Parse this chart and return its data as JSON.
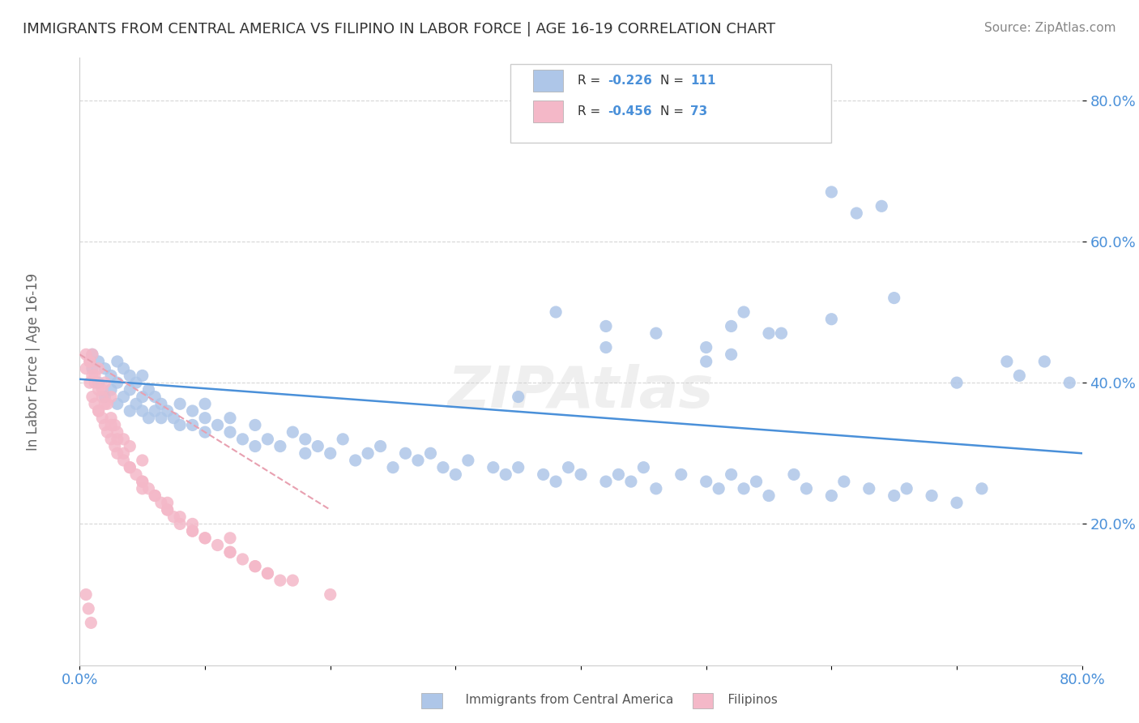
{
  "title": "IMMIGRANTS FROM CENTRAL AMERICA VS FILIPINO IN LABOR FORCE | AGE 16-19 CORRELATION CHART",
  "source": "Source: ZipAtlas.com",
  "ylabel": "In Labor Force | Age 16-19",
  "x_min": 0.0,
  "x_max": 0.8,
  "y_min": 0.0,
  "y_max": 0.86,
  "yticks": [
    0.2,
    0.4,
    0.6,
    0.8
  ],
  "ytick_labels": [
    "20.0%",
    "40.0%",
    "60.0%",
    "80.0%"
  ],
  "xticks": [
    0.0,
    0.1,
    0.2,
    0.3,
    0.4,
    0.5,
    0.6,
    0.7,
    0.8
  ],
  "legend_r_values": [
    "-0.226",
    "-0.456"
  ],
  "legend_n_values": [
    "111",
    "73"
  ],
  "blue_scatter_x": [
    0.01,
    0.01,
    0.015,
    0.015,
    0.02,
    0.02,
    0.025,
    0.025,
    0.03,
    0.03,
    0.03,
    0.035,
    0.035,
    0.04,
    0.04,
    0.04,
    0.045,
    0.045,
    0.05,
    0.05,
    0.05,
    0.055,
    0.055,
    0.06,
    0.06,
    0.065,
    0.065,
    0.07,
    0.075,
    0.08,
    0.08,
    0.09,
    0.09,
    0.1,
    0.1,
    0.1,
    0.11,
    0.12,
    0.12,
    0.13,
    0.14,
    0.14,
    0.15,
    0.16,
    0.17,
    0.18,
    0.18,
    0.19,
    0.2,
    0.21,
    0.22,
    0.23,
    0.24,
    0.25,
    0.26,
    0.27,
    0.28,
    0.29,
    0.3,
    0.31,
    0.33,
    0.34,
    0.35,
    0.37,
    0.38,
    0.39,
    0.4,
    0.42,
    0.43,
    0.44,
    0.45,
    0.46,
    0.48,
    0.5,
    0.51,
    0.52,
    0.53,
    0.54,
    0.55,
    0.57,
    0.58,
    0.6,
    0.61,
    0.63,
    0.65,
    0.66,
    0.68,
    0.7,
    0.72,
    0.74,
    0.75,
    0.77,
    0.79,
    0.38,
    0.42,
    0.53,
    0.55,
    0.6,
    0.46,
    0.5,
    0.52,
    0.56,
    0.42,
    0.6,
    0.62,
    0.64,
    0.5,
    0.52,
    0.65,
    0.7,
    0.35
  ],
  "blue_scatter_y": [
    0.42,
    0.44,
    0.4,
    0.43,
    0.38,
    0.42,
    0.39,
    0.41,
    0.37,
    0.4,
    0.43,
    0.38,
    0.42,
    0.36,
    0.39,
    0.41,
    0.37,
    0.4,
    0.36,
    0.38,
    0.41,
    0.35,
    0.39,
    0.36,
    0.38,
    0.35,
    0.37,
    0.36,
    0.35,
    0.34,
    0.37,
    0.34,
    0.36,
    0.33,
    0.35,
    0.37,
    0.34,
    0.33,
    0.35,
    0.32,
    0.31,
    0.34,
    0.32,
    0.31,
    0.33,
    0.3,
    0.32,
    0.31,
    0.3,
    0.32,
    0.29,
    0.3,
    0.31,
    0.28,
    0.3,
    0.29,
    0.3,
    0.28,
    0.27,
    0.29,
    0.28,
    0.27,
    0.28,
    0.27,
    0.26,
    0.28,
    0.27,
    0.26,
    0.27,
    0.26,
    0.28,
    0.25,
    0.27,
    0.26,
    0.25,
    0.27,
    0.25,
    0.26,
    0.24,
    0.27,
    0.25,
    0.24,
    0.26,
    0.25,
    0.24,
    0.25,
    0.24,
    0.23,
    0.25,
    0.43,
    0.41,
    0.43,
    0.4,
    0.5,
    0.48,
    0.5,
    0.47,
    0.49,
    0.47,
    0.45,
    0.48,
    0.47,
    0.45,
    0.67,
    0.64,
    0.65,
    0.43,
    0.44,
    0.52,
    0.4,
    0.38
  ],
  "pink_scatter_x": [
    0.005,
    0.005,
    0.008,
    0.008,
    0.01,
    0.01,
    0.01,
    0.012,
    0.012,
    0.015,
    0.015,
    0.015,
    0.018,
    0.018,
    0.02,
    0.02,
    0.02,
    0.022,
    0.025,
    0.025,
    0.025,
    0.028,
    0.028,
    0.03,
    0.03,
    0.035,
    0.035,
    0.04,
    0.04,
    0.045,
    0.05,
    0.05,
    0.055,
    0.06,
    0.065,
    0.07,
    0.075,
    0.08,
    0.09,
    0.1,
    0.11,
    0.12,
    0.13,
    0.14,
    0.15,
    0.16,
    0.005,
    0.007,
    0.009,
    0.008,
    0.012,
    0.018,
    0.022,
    0.015,
    0.025,
    0.03,
    0.035,
    0.04,
    0.05,
    0.06,
    0.07,
    0.08,
    0.09,
    0.1,
    0.12,
    0.14,
    0.05,
    0.07,
    0.09,
    0.12,
    0.15,
    0.17,
    0.2
  ],
  "pink_scatter_y": [
    0.42,
    0.44,
    0.4,
    0.43,
    0.38,
    0.41,
    0.44,
    0.37,
    0.4,
    0.36,
    0.39,
    0.42,
    0.35,
    0.38,
    0.34,
    0.37,
    0.4,
    0.33,
    0.32,
    0.35,
    0.38,
    0.31,
    0.34,
    0.3,
    0.33,
    0.29,
    0.32,
    0.28,
    0.31,
    0.27,
    0.26,
    0.29,
    0.25,
    0.24,
    0.23,
    0.22,
    0.21,
    0.2,
    0.19,
    0.18,
    0.17,
    0.16,
    0.15,
    0.14,
    0.13,
    0.12,
    0.1,
    0.08,
    0.06,
    0.43,
    0.41,
    0.39,
    0.37,
    0.36,
    0.34,
    0.32,
    0.3,
    0.28,
    0.26,
    0.24,
    0.22,
    0.21,
    0.19,
    0.18,
    0.16,
    0.14,
    0.25,
    0.23,
    0.2,
    0.18,
    0.13,
    0.12,
    0.1
  ],
  "blue_line_x": [
    0.0,
    0.8
  ],
  "blue_line_y": [
    0.405,
    0.3
  ],
  "pink_line_x": [
    0.0,
    0.2
  ],
  "pink_line_y": [
    0.44,
    0.22
  ],
  "watermark": "ZIPAtlas",
  "background_color": "#ffffff",
  "scatter_blue_color": "#aec6e8",
  "scatter_pink_color": "#f4b8c8",
  "line_blue_color": "#4a90d9",
  "line_pink_color": "#e8a0b0",
  "grid_color": "#cccccc",
  "title_color": "#333333",
  "axis_label_color": "#666666",
  "tick_label_color": "#4a90d9"
}
